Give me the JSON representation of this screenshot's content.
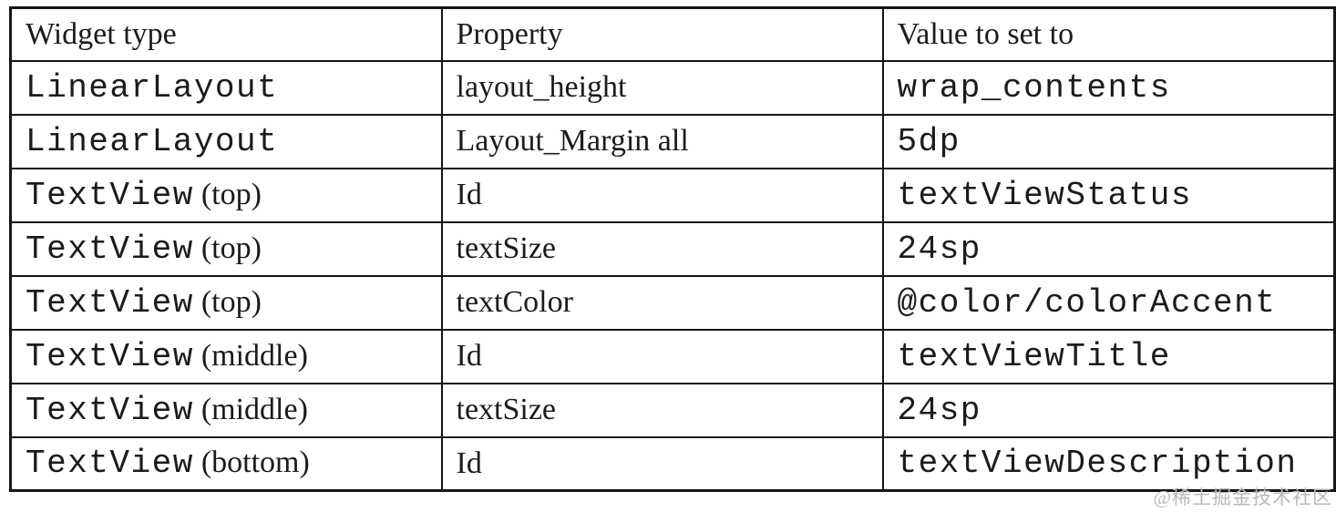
{
  "table": {
    "columns": [
      "Widget type",
      "Property",
      "Value to set to"
    ],
    "rows": [
      {
        "widget_code": "LinearLayout",
        "widget_note": "",
        "property": "layout_height",
        "value": "wrap_contents"
      },
      {
        "widget_code": "LinearLayout",
        "widget_note": "",
        "property": "Layout_Margin all",
        "value": "5dp"
      },
      {
        "widget_code": "TextView",
        "widget_note": "(top)",
        "property": "Id",
        "value": "textViewStatus"
      },
      {
        "widget_code": "TextView",
        "widget_note": "(top)",
        "property": "textSize",
        "value": "24sp"
      },
      {
        "widget_code": "TextView",
        "widget_note": "(top)",
        "property": "textColor",
        "value": "@color/colorAccent"
      },
      {
        "widget_code": "TextView",
        "widget_note": "(middle)",
        "property": "Id",
        "value": "textViewTitle"
      },
      {
        "widget_code": "TextView",
        "widget_note": "(middle)",
        "property": "textSize",
        "value": "24sp"
      },
      {
        "widget_code": "TextView",
        "widget_note": "(bottom)",
        "property": "Id",
        "value": "textViewDescription"
      }
    ]
  },
  "watermark": {
    "text": "@稀土掘金技术社区"
  },
  "colors": {
    "border": "#161616",
    "text": "#1b1b1b",
    "background": "#ffffff",
    "watermark": "#b9b9b9"
  }
}
